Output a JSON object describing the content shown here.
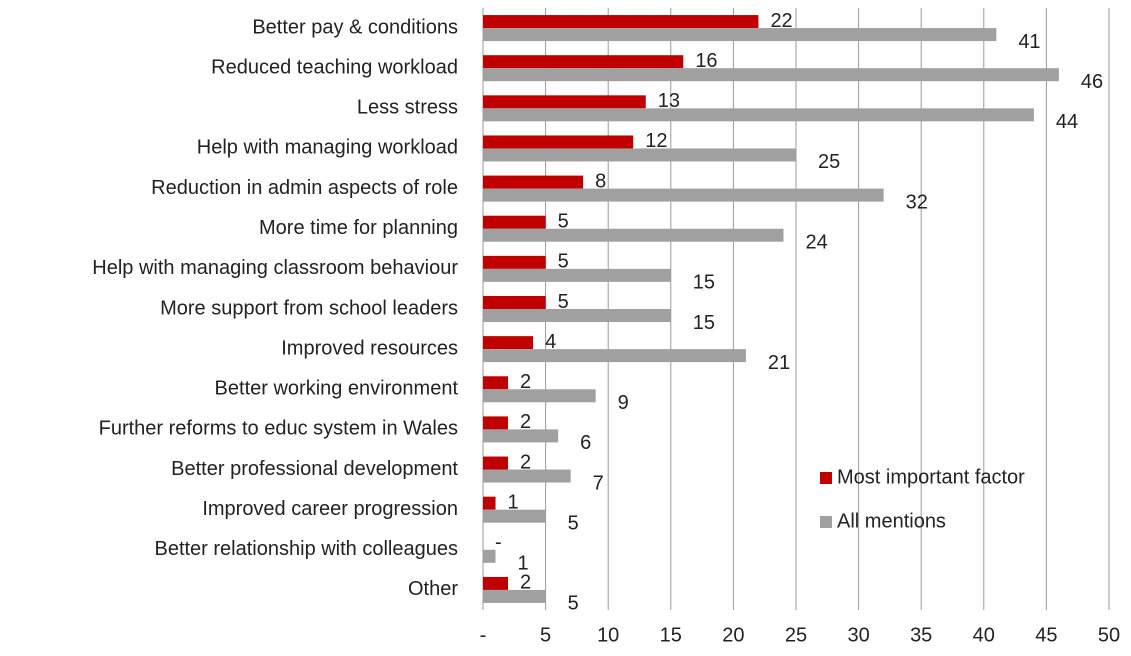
{
  "chart_data": {
    "type": "bar",
    "orientation": "horizontal",
    "categories": [
      "Better pay & conditions",
      "Reduced teaching workload",
      "Less stress",
      "Help with managing workload",
      "Reduction in admin aspects of role",
      "More time for planning",
      "Help with managing classroom behaviour",
      "More support from school leaders",
      "Improved resources",
      "Better working environment",
      "Further reforms to educ system in Wales",
      "Better professional development",
      "Improved career progression",
      "Better relationship with colleagues",
      "Other"
    ],
    "series": [
      {
        "name": "Most important factor",
        "color": "#c00000",
        "values": [
          22,
          16,
          13,
          12,
          8,
          5,
          5,
          5,
          4,
          2,
          2,
          2,
          1,
          0,
          2
        ],
        "value_labels": [
          "22",
          "16",
          "13",
          "12",
          "8",
          "5",
          "5",
          "5",
          "4",
          "2",
          "2",
          "2",
          "1",
          "-",
          "2"
        ]
      },
      {
        "name": "All mentions",
        "color": "#a0a0a0",
        "values": [
          41,
          46,
          44,
          25,
          32,
          24,
          15,
          15,
          21,
          9,
          6,
          7,
          5,
          1,
          5
        ]
      }
    ],
    "xlim": [
      0,
      50
    ],
    "xticks": [
      {
        "value": 0,
        "label": "-"
      },
      5,
      10,
      15,
      20,
      25,
      30,
      35,
      40,
      45,
      50
    ],
    "grid": true,
    "legend": "lower right"
  }
}
